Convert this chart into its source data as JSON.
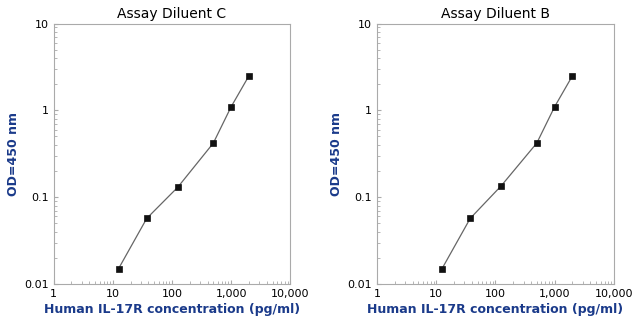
{
  "left_title": "Assay Diluent C",
  "right_title": "Assay Diluent B",
  "xlabel": "Human IL-17R concentration (pg/ml)",
  "ylabel": "OD=450 nm",
  "x_data": [
    12.5,
    37.5,
    125,
    500,
    1000,
    2000
  ],
  "y_data_left": [
    0.015,
    0.057,
    0.13,
    0.42,
    1.1,
    2.5
  ],
  "y_data_right": [
    0.015,
    0.057,
    0.135,
    0.42,
    1.1,
    2.5
  ],
  "xlim": [
    1,
    10000
  ],
  "ylim": [
    0.01,
    10
  ],
  "line_color": "#666666",
  "marker_color": "#111111",
  "background_color": "#ffffff",
  "title_fontsize": 10,
  "label_fontsize": 9,
  "tick_fontsize": 8,
  "text_color": "#000000",
  "xlabel_color": "#1a3a8a",
  "ylabel_color": "#1a3a8a",
  "spine_color": "#aaaaaa"
}
